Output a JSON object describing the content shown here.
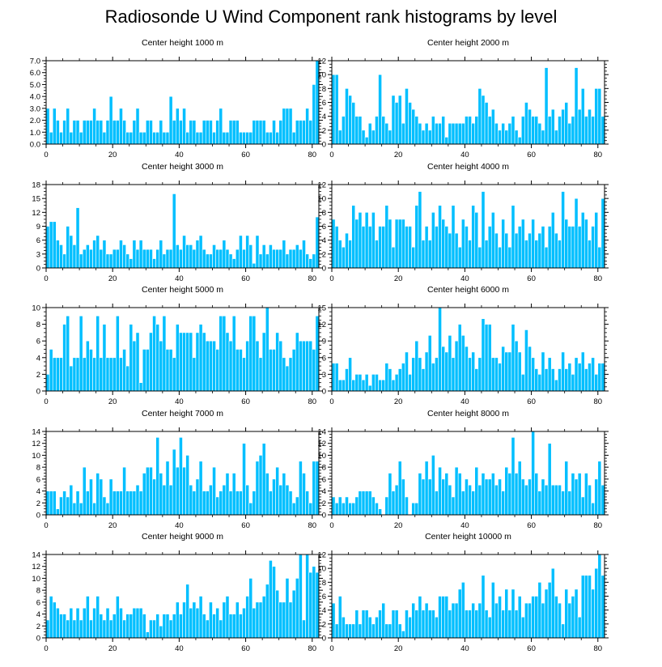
{
  "title": "Radiosonde U Wind Component rank histograms by level",
  "colors": {
    "bar": "#00BFFF",
    "bar_edge": "#ffffff",
    "axis": "#000000"
  },
  "chart_data": [
    {
      "type": "bar",
      "title": "Center height 1000 m",
      "xlim": [
        0,
        82
      ],
      "ylim": [
        0,
        7
      ],
      "xticks": [
        0,
        20,
        40,
        60,
        80
      ],
      "yticks": [
        0,
        1,
        2,
        3,
        4,
        5,
        6,
        7
      ],
      "ytick_labels": [
        "0.0",
        "1.0",
        "2.0",
        "3.0",
        "4.0",
        "5.0",
        "6.0",
        "7.0"
      ],
      "values": [
        3,
        1,
        3,
        2,
        1,
        2,
        3,
        1,
        2,
        2,
        1,
        2,
        2,
        2,
        3,
        2,
        2,
        1,
        2,
        4,
        2,
        2,
        3,
        2,
        1,
        1,
        2,
        3,
        1,
        1,
        2,
        2,
        1,
        1,
        2,
        1,
        1,
        4,
        2,
        3,
        2,
        3,
        1,
        2,
        2,
        1,
        1,
        2,
        2,
        2,
        1,
        2,
        3,
        1,
        1,
        2,
        2,
        2,
        1,
        1,
        1,
        1,
        2,
        2,
        2,
        2,
        1,
        1,
        2,
        1,
        2,
        3,
        3,
        3,
        1,
        2,
        2,
        2,
        3,
        2,
        5,
        7
      ]
    },
    {
      "type": "bar",
      "title": "Center height 2000 m",
      "xlim": [
        0,
        82
      ],
      "ylim": [
        0,
        12
      ],
      "xticks": [
        0,
        20,
        40,
        60,
        80
      ],
      "yticks": [
        0,
        2,
        4,
        6,
        8,
        10,
        12
      ],
      "values": [
        10,
        10,
        2,
        4,
        8,
        7,
        6,
        4,
        4,
        2,
        1,
        3,
        2,
        4,
        10,
        4,
        3,
        2,
        7,
        6,
        7,
        3,
        8,
        6,
        5,
        4,
        3,
        2,
        3,
        2,
        4,
        3,
        3,
        4,
        1,
        3,
        3,
        3,
        3,
        3,
        4,
        4,
        3,
        4,
        8,
        7,
        6,
        4,
        5,
        3,
        2,
        3,
        2,
        3,
        4,
        2,
        1,
        4,
        6,
        5,
        4,
        4,
        3,
        2,
        11,
        4,
        5,
        2,
        4,
        5,
        6,
        3,
        4,
        11,
        5,
        8,
        4,
        5,
        4,
        8,
        8,
        4
      ]
    },
    {
      "type": "bar",
      "title": "Center height 3000 m",
      "xlim": [
        0,
        82
      ],
      "ylim": [
        0,
        18
      ],
      "xticks": [
        0,
        20,
        40,
        60,
        80
      ],
      "yticks": [
        0,
        3,
        6,
        9,
        12,
        15,
        18
      ],
      "values": [
        9,
        10,
        10,
        6,
        5,
        3,
        9,
        7,
        5,
        13,
        3,
        4,
        5,
        4,
        6,
        7,
        4,
        6,
        3,
        3,
        4,
        4,
        6,
        5,
        3,
        2,
        6,
        4,
        6,
        4,
        4,
        4,
        2,
        4,
        6,
        3,
        4,
        4,
        16,
        5,
        4,
        7,
        5,
        5,
        4,
        6,
        7,
        4,
        3,
        3,
        5,
        4,
        4,
        6,
        4,
        3,
        2,
        4,
        7,
        4,
        7,
        5,
        1,
        7,
        3,
        5,
        3,
        5,
        4,
        4,
        4,
        6,
        3,
        4,
        4,
        5,
        4,
        6,
        3,
        2,
        3,
        11
      ]
    },
    {
      "type": "bar",
      "title": "Center height 4000 m",
      "xlim": [
        0,
        82
      ],
      "ylim": [
        0,
        12
      ],
      "xticks": [
        0,
        20,
        40,
        60,
        80
      ],
      "yticks": [
        0,
        2,
        4,
        6,
        8,
        10,
        12
      ],
      "values": [
        7,
        6,
        4,
        3,
        5,
        4,
        9,
        7,
        8,
        6,
        8,
        6,
        8,
        4,
        6,
        6,
        9,
        7,
        3,
        7,
        7,
        7,
        6,
        6,
        3,
        9,
        11,
        4,
        6,
        4,
        8,
        6,
        9,
        7,
        6,
        5,
        9,
        5,
        3,
        7,
        6,
        4,
        9,
        8,
        3,
        11,
        4,
        6,
        8,
        5,
        3,
        7,
        5,
        3,
        9,
        5,
        6,
        7,
        4,
        5,
        7,
        4,
        5,
        6,
        3,
        6,
        8,
        5,
        4,
        11,
        7,
        6,
        6,
        10,
        6,
        8,
        7,
        4,
        6,
        8,
        3,
        10
      ]
    },
    {
      "type": "bar",
      "title": "Center height 5000 m",
      "xlim": [
        0,
        82
      ],
      "ylim": [
        0,
        10
      ],
      "xticks": [
        0,
        20,
        40,
        60,
        80
      ],
      "yticks": [
        0,
        2,
        4,
        6,
        8,
        10
      ],
      "values": [
        2,
        5,
        4,
        4,
        4,
        8,
        9,
        3,
        4,
        4,
        9,
        4,
        6,
        5,
        4,
        9,
        4,
        8,
        4,
        4,
        4,
        9,
        4,
        5,
        3,
        8,
        6,
        7,
        1,
        5,
        5,
        7,
        9,
        8,
        6,
        9,
        5,
        5,
        4,
        8,
        7,
        7,
        7,
        7,
        4,
        7,
        8,
        7,
        6,
        6,
        6,
        5,
        9,
        9,
        7,
        6,
        9,
        5,
        5,
        4,
        6,
        9,
        9,
        6,
        4,
        7,
        10,
        5,
        5,
        7,
        6,
        4,
        3,
        4,
        5,
        7,
        6,
        6,
        6,
        6,
        5,
        9
      ]
    },
    {
      "type": "bar",
      "title": "Center height 6000 m",
      "xlim": [
        0,
        82
      ],
      "ylim": [
        0,
        15
      ],
      "xticks": [
        0,
        20,
        40,
        60,
        80
      ],
      "yticks": [
        0,
        3,
        6,
        9,
        12,
        15
      ],
      "values": [
        5,
        5,
        2,
        2,
        4,
        6,
        2,
        3,
        3,
        2,
        3,
        1,
        3,
        3,
        2,
        2,
        5,
        4,
        2,
        3,
        4,
        5,
        7,
        3,
        6,
        9,
        6,
        4,
        7,
        10,
        5,
        6,
        15,
        8,
        7,
        10,
        6,
        9,
        12,
        10,
        8,
        6,
        7,
        4,
        6,
        13,
        12,
        12,
        6,
        6,
        5,
        8,
        7,
        7,
        12,
        9,
        7,
        3,
        11,
        8,
        6,
        4,
        3,
        7,
        4,
        6,
        4,
        2,
        4,
        7,
        4,
        5,
        3,
        6,
        5,
        7,
        4,
        5,
        6,
        3,
        5,
        5
      ]
    },
    {
      "type": "bar",
      "title": "Center height 7000 m",
      "xlim": [
        0,
        82
      ],
      "ylim": [
        0,
        14
      ],
      "xticks": [
        0,
        20,
        40,
        60,
        80
      ],
      "yticks": [
        0,
        2,
        4,
        6,
        8,
        10,
        12,
        14
      ],
      "values": [
        4,
        4,
        4,
        1,
        3,
        4,
        3,
        5,
        2,
        4,
        2,
        8,
        4,
        6,
        2,
        7,
        6,
        3,
        2,
        6,
        4,
        4,
        4,
        8,
        4,
        4,
        4,
        5,
        4,
        7,
        8,
        8,
        6,
        13,
        7,
        5,
        9,
        5,
        11,
        8,
        13,
        8,
        10,
        5,
        4,
        6,
        9,
        4,
        4,
        5,
        8,
        3,
        4,
        5,
        7,
        4,
        7,
        4,
        4,
        12,
        5,
        2,
        4,
        9,
        10,
        12,
        7,
        4,
        6,
        8,
        5,
        7,
        5,
        4,
        2,
        3,
        9,
        7,
        4,
        2,
        9,
        9
      ]
    },
    {
      "type": "bar",
      "title": "Center height 8000 m",
      "xlim": [
        0,
        82
      ],
      "ylim": [
        0,
        14
      ],
      "xticks": [
        0,
        20,
        40,
        60,
        80
      ],
      "yticks": [
        0,
        2,
        4,
        6,
        8,
        10,
        12,
        14
      ],
      "values": [
        3,
        2,
        3,
        2,
        3,
        2,
        2,
        3,
        4,
        4,
        4,
        4,
        3,
        2,
        1,
        0,
        3,
        7,
        4,
        5,
        9,
        6,
        3,
        0,
        2,
        2,
        7,
        6,
        9,
        6,
        10,
        4,
        8,
        6,
        7,
        5,
        3,
        8,
        7,
        4,
        6,
        5,
        4,
        8,
        5,
        7,
        6,
        6,
        7,
        5,
        6,
        4,
        8,
        7,
        13,
        7,
        9,
        6,
        5,
        6,
        14,
        7,
        4,
        6,
        5,
        12,
        5,
        5,
        5,
        4,
        9,
        4,
        7,
        6,
        7,
        3,
        7,
        5,
        2,
        6,
        9,
        5
      ]
    },
    {
      "type": "bar",
      "title": "Center height 9000 m",
      "xlim": [
        0,
        82
      ],
      "ylim": [
        0,
        14
      ],
      "xticks": [
        0,
        20,
        40,
        60,
        80
      ],
      "yticks": [
        0,
        2,
        4,
        6,
        8,
        10,
        12,
        14
      ],
      "values": [
        3,
        7,
        6,
        5,
        4,
        4,
        3,
        5,
        3,
        5,
        3,
        5,
        7,
        3,
        5,
        7,
        4,
        3,
        5,
        3,
        4,
        7,
        5,
        3,
        4,
        4,
        5,
        5,
        5,
        4,
        1,
        3,
        3,
        4,
        2,
        4,
        4,
        3,
        4,
        6,
        4,
        6,
        9,
        5,
        6,
        5,
        7,
        4,
        3,
        6,
        4,
        5,
        3,
        6,
        7,
        4,
        4,
        6,
        4,
        5,
        7,
        10,
        5,
        6,
        6,
        7,
        9,
        13,
        12,
        8,
        6,
        6,
        10,
        6,
        8,
        10,
        14,
        3,
        14,
        11,
        12,
        11
      ]
    },
    {
      "type": "bar",
      "title": "Center height 10000 m",
      "xlim": [
        0,
        82
      ],
      "ylim": [
        0,
        12
      ],
      "xticks": [
        0,
        20,
        40,
        60,
        80
      ],
      "yticks": [
        0,
        2,
        4,
        6,
        8,
        10,
        12
      ],
      "values": [
        5,
        2,
        6,
        3,
        2,
        2,
        2,
        4,
        2,
        4,
        4,
        3,
        2,
        3,
        4,
        5,
        2,
        2,
        4,
        4,
        2,
        1,
        4,
        3,
        5,
        4,
        6,
        4,
        5,
        4,
        4,
        3,
        6,
        6,
        6,
        4,
        5,
        5,
        7,
        8,
        4,
        4,
        5,
        4,
        5,
        9,
        4,
        3,
        8,
        5,
        6,
        4,
        7,
        4,
        7,
        4,
        6,
        3,
        5,
        5,
        6,
        6,
        8,
        5,
        7,
        8,
        10,
        6,
        5,
        2,
        7,
        5,
        6,
        7,
        3,
        9,
        9,
        9,
        7,
        10,
        12,
        9
      ]
    }
  ]
}
